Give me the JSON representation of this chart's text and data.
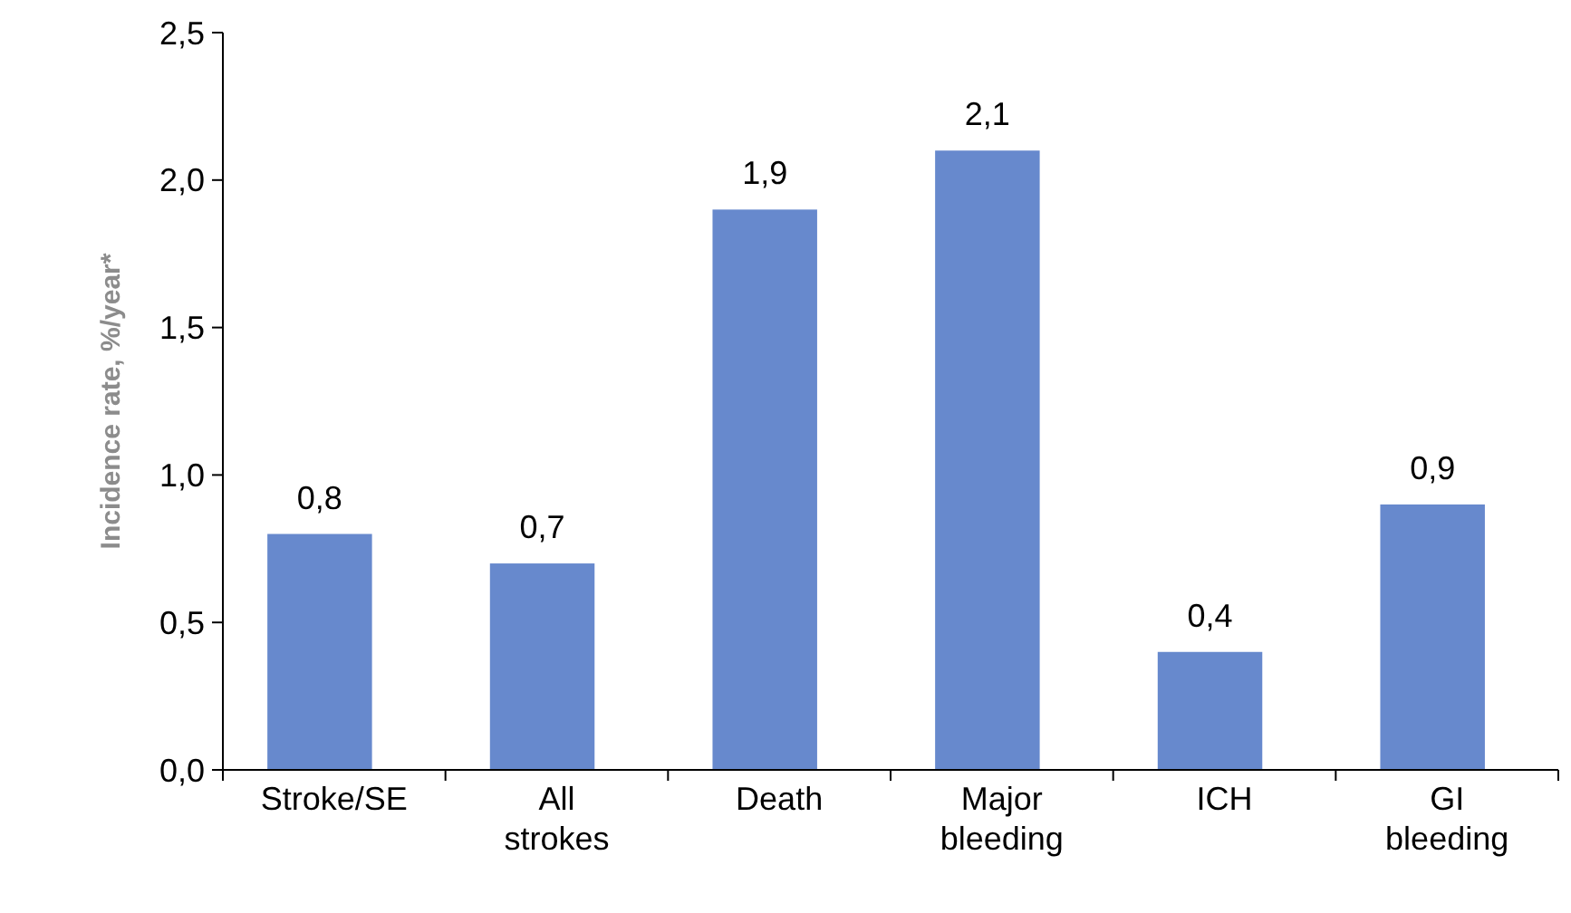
{
  "chart_data": {
    "type": "bar",
    "ylabel": "Incidence rate, %/year*",
    "categories": [
      "Stroke/SE",
      "All strokes",
      "Death",
      "Major bleeding",
      "ICH",
      "GI bleeding"
    ],
    "values": [
      0.8,
      0.7,
      1.9,
      2.1,
      0.4,
      0.9
    ],
    "value_labels": [
      "0,8",
      "0,7",
      "1,9",
      "2,1",
      "0,4",
      "0,9"
    ],
    "color": "#6789cd",
    "ylim": [
      0,
      2.5
    ],
    "yticks": [
      {
        "value": 0,
        "label": "0,0"
      },
      {
        "value": 0.5,
        "label": "0,5"
      },
      {
        "value": 1,
        "label": "1,0"
      },
      {
        "value": 1.5,
        "label": "1,5"
      },
      {
        "value": 2,
        "label": "2,0"
      },
      {
        "value": 2.5,
        "label": "2,5"
      }
    ],
    "grid": false
  }
}
